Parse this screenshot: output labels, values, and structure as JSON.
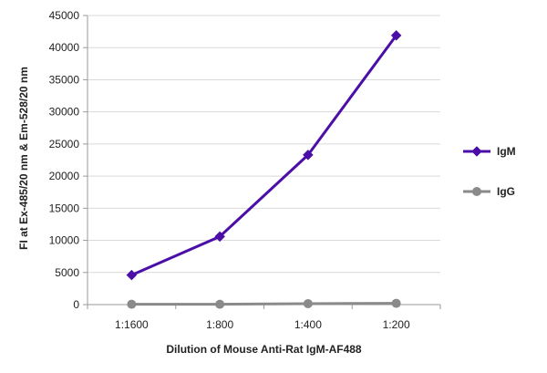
{
  "chart_data": {
    "type": "line",
    "title": "",
    "xlabel": "Dilution of Mouse Anti-Rat IgM-AF488",
    "ylabel": "FI at Ex-485/20 nm & Em-528/20 nm",
    "categories": [
      "1:1600",
      "1:800",
      "1:400",
      "1:200"
    ],
    "ylim": [
      0,
      45000
    ],
    "yticks": [
      0,
      5000,
      10000,
      15000,
      20000,
      25000,
      30000,
      35000,
      40000,
      45000
    ],
    "grid": true,
    "legend_position": "right",
    "series": [
      {
        "name": "IgM",
        "values": [
          4600,
          10600,
          23300,
          41900
        ],
        "color": "#4b0fa8",
        "marker": "diamond"
      },
      {
        "name": "IgG",
        "values": [
          50,
          50,
          150,
          200
        ],
        "color": "#8a8a8a",
        "marker": "circle"
      }
    ]
  }
}
